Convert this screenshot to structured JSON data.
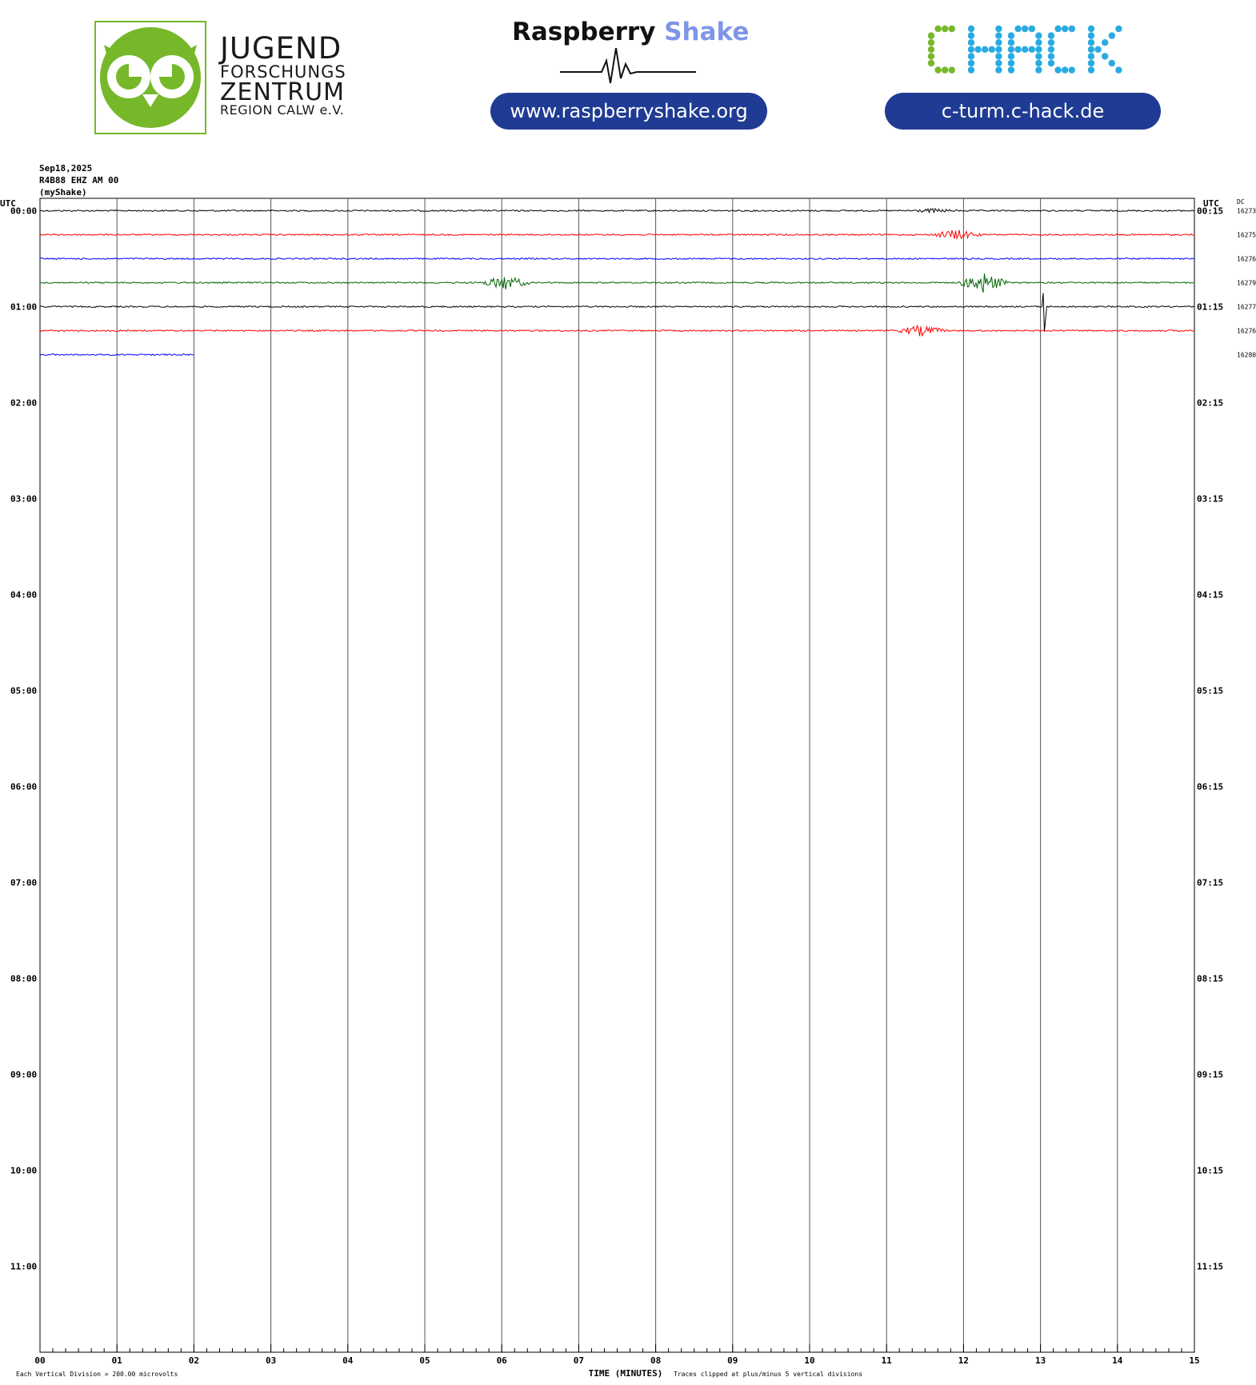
{
  "logos": {
    "jfz": {
      "line1": "JUGEND",
      "line2": "FORSCHUNGS",
      "line3": "ZENTRUM",
      "line4": "REGION CALW e.V.",
      "green": "#76b82a"
    },
    "raspberry_shake": {
      "word1": "Raspberry",
      "word2": "Shake",
      "url": "www.raspberryshake.org"
    },
    "chack": {
      "text": "CHACK",
      "url": "c-turm.c-hack.de",
      "green": "#76b82a",
      "blue": "#29abe2"
    },
    "pill_color": "#1f3b93"
  },
  "header": {
    "date": "Sep18,2025",
    "station": "R4B88 EHZ AM 00",
    "source": "(myShake)"
  },
  "chart_data": {
    "type": "line",
    "chart_kind": "helicorder",
    "left_axis_label": "UTC",
    "right_axis_label": "UTC",
    "dc_label": "DC",
    "xlabel": "TIME (MINUTES)",
    "x_ticks": [
      "00",
      "01",
      "02",
      "03",
      "04",
      "05",
      "06",
      "07",
      "08",
      "09",
      "10",
      "11",
      "12",
      "13",
      "14",
      "15"
    ],
    "xlim": [
      0,
      15
    ],
    "minutes_per_line": 15,
    "hour_labels_left": [
      "00:00",
      "01:00",
      "02:00",
      "03:00",
      "04:00",
      "05:00",
      "06:00",
      "07:00",
      "08:00",
      "09:00",
      "10:00",
      "11:00"
    ],
    "hour_labels_right": [
      "00:15",
      "01:15",
      "02:15",
      "03:15",
      "04:15",
      "05:15",
      "06:15",
      "07:15",
      "08:15",
      "09:15",
      "10:15",
      "11:15"
    ],
    "rows_total": 48,
    "footer_left": "Each Vertical Division =  200.00 microvolts",
    "footer_right": "Traces clipped at plus/minus 5 vertical divisions",
    "series": [
      {
        "start": "00:00",
        "color": "#000000",
        "dc": "16273",
        "end_minute": 15,
        "events": [
          {
            "minute": 11.6,
            "amplitude": 0.3
          }
        ]
      },
      {
        "start": "00:15",
        "color": "#ff0000",
        "dc": "16275",
        "end_minute": 15,
        "events": [
          {
            "minute": 11.9,
            "amplitude": 0.9
          }
        ]
      },
      {
        "start": "00:30",
        "color": "#0000ff",
        "dc": "16276",
        "end_minute": 15,
        "events": []
      },
      {
        "start": "00:45",
        "color": "#006400",
        "dc": "16279",
        "end_minute": 15,
        "events": [
          {
            "minute": 6.05,
            "amplitude": 1.3
          },
          {
            "minute": 12.25,
            "amplitude": 2.0
          }
        ]
      },
      {
        "start": "01:00",
        "color": "#000000",
        "dc": "16277",
        "end_minute": 15,
        "events": [
          {
            "minute": 13.05,
            "amplitude": 5.0,
            "spike": true
          }
        ]
      },
      {
        "start": "01:15",
        "color": "#ff0000",
        "dc": "16276",
        "end_minute": 15,
        "events": [
          {
            "minute": 11.45,
            "amplitude": 1.0
          }
        ]
      },
      {
        "start": "01:30",
        "color": "#0000ff",
        "dc": "16280",
        "end_minute": 2,
        "events": []
      }
    ]
  }
}
